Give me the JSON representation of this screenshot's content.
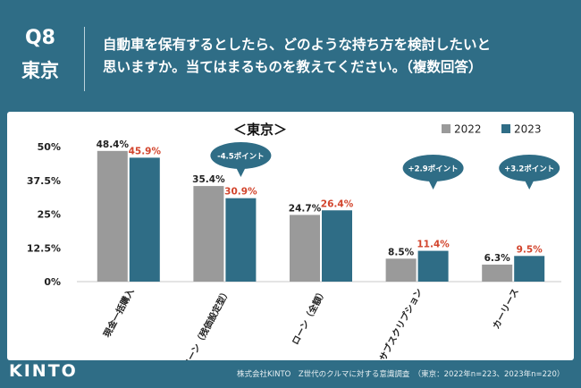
{
  "header": {
    "question_number": "Q8",
    "region": "東京",
    "question_line1": "自動車を保有するとしたら、どのような持ち方を検討したいと",
    "question_line2": "思いますか。当てはまるものを教えてください。（複数回答）"
  },
  "footer": {
    "logo": "KINTO",
    "source": "株式会社KINTO　Z世代のクルマに対する意識調査　（東京：2022年n=223、2023年n=220）"
  },
  "colors": {
    "s2022": "#9a9a9a",
    "s2023": "#2f6d86",
    "label2023": "#d2442c",
    "background": "#2f6d86"
  },
  "chart_data": {
    "type": "bar",
    "title": "＜東京＞",
    "categories": [
      "現金一括購入",
      "ローン（残価設定型）",
      "ローン（全額）",
      "サブスクリプション",
      "カーリース"
    ],
    "series": [
      {
        "name": "2022",
        "values": [
          48.4,
          35.4,
          24.7,
          8.5,
          6.3
        ],
        "labels": [
          "48.4%",
          "35.4%",
          "24.7%",
          "8.5%",
          "6.3%"
        ]
      },
      {
        "name": "2023",
        "values": [
          45.9,
          30.9,
          26.4,
          11.4,
          9.5
        ],
        "labels": [
          "45.9%",
          "30.9%",
          "26.4%",
          "11.4%",
          "9.5%"
        ]
      }
    ],
    "yticks": [
      "0%",
      "12.5%",
      "25%",
      "37.5%",
      "50%"
    ],
    "ylim": [
      0,
      50
    ],
    "legend": "top-right",
    "annotations": [
      {
        "category_index": 1,
        "text": "-4.5ポイント"
      },
      {
        "category_index": 3,
        "text": "+2.9ポイント"
      },
      {
        "category_index": 4,
        "text": "+3.2ポイント"
      }
    ]
  }
}
